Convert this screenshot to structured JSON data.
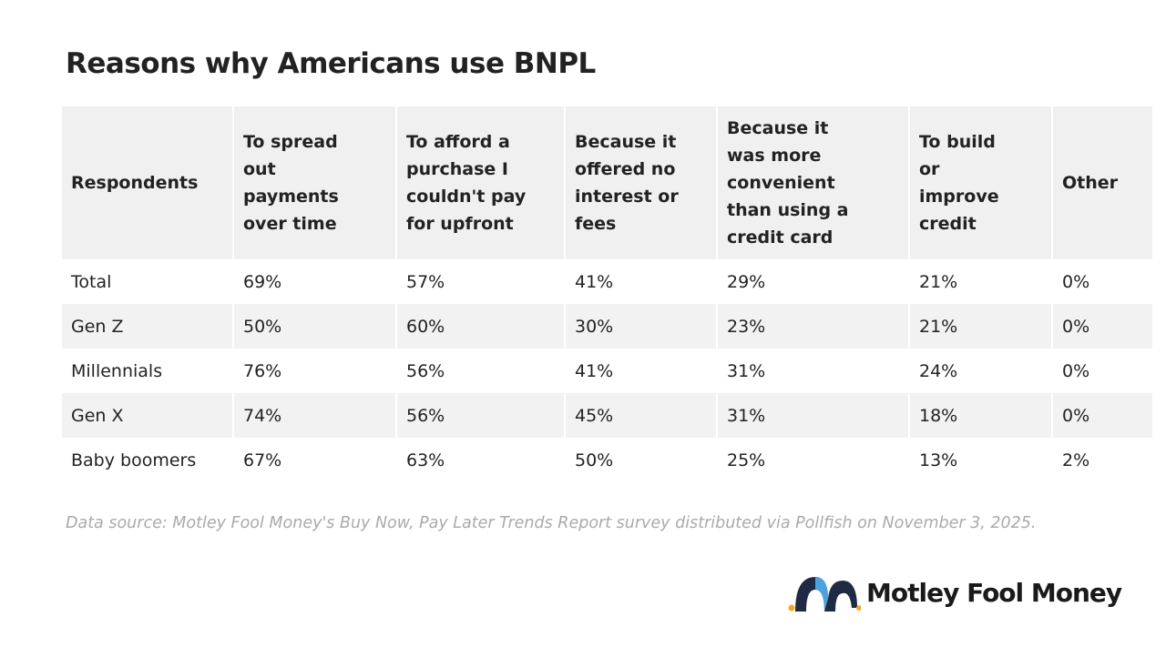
{
  "header": {
    "title": "Reasons why Americans use BNPL"
  },
  "table": {
    "columns": [
      "Respondents",
      "To spread out payments over time",
      "To afford a purchase I couldn't pay for upfront",
      "Because it offered no interest or fees",
      "Because it was more convenient than using a credit card",
      "To build or improve credit",
      "Other"
    ],
    "rows": [
      [
        "Total",
        "69%",
        "57%",
        "41%",
        "29%",
        "21%",
        "0%"
      ],
      [
        "Gen Z",
        "50%",
        "60%",
        "30%",
        "23%",
        "21%",
        "0%"
      ],
      [
        "Millennials",
        "76%",
        "56%",
        "41%",
        "31%",
        "24%",
        "0%"
      ],
      [
        "Gen X",
        "74%",
        "56%",
        "45%",
        "31%",
        "18%",
        "0%"
      ],
      [
        "Baby boomers",
        "67%",
        "63%",
        "50%",
        "25%",
        "13%",
        "2%"
      ]
    ]
  },
  "footer": {
    "source": "Data source: Motley Fool Money's Buy Now, Pay Later Trends Report survey distributed via Pollfish on November 3, 2025.",
    "logo": "Motley Fool Money"
  }
}
